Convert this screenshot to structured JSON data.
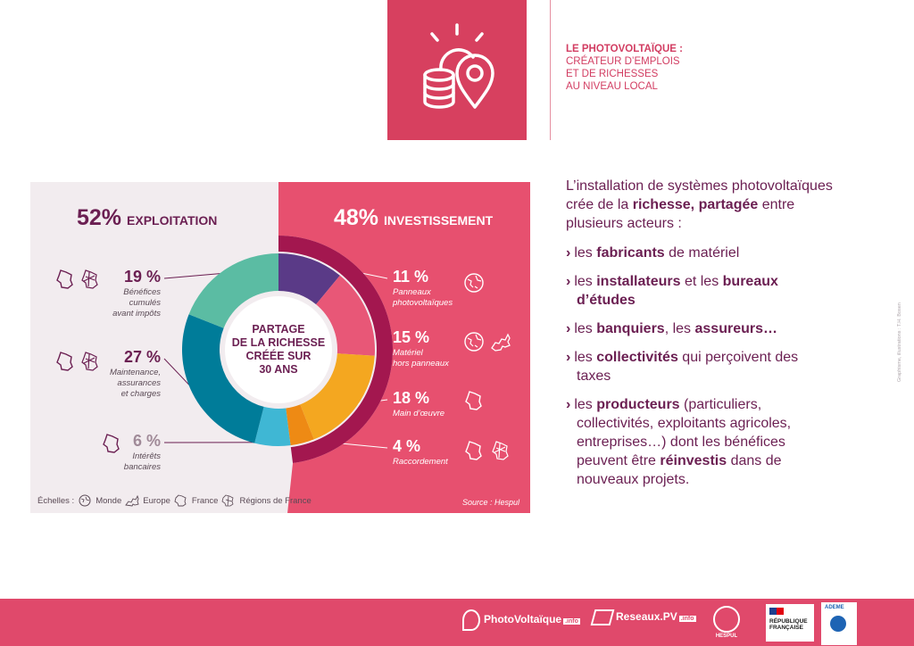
{
  "topic": {
    "line1": "LE PHOTOVOLTAÏQUE :",
    "line2": "CRÉATEUR D’EMPLOIS",
    "line3": "ET DE RICHESSES",
    "line4": "AU NIVEAU LOCAL"
  },
  "chart_data": {
    "type": "pie",
    "title": "PARTAGE DE LA RICHESSE CRÉÉE SUR 30 ANS",
    "groups": [
      {
        "name": "EXPLOITATION",
        "percent": 52
      },
      {
        "name": "INVESTISSEMENT",
        "percent": 48
      }
    ],
    "slices": [
      {
        "label": "Panneaux photovoltaïques",
        "value": 11,
        "color": "#5a3a87",
        "group": "INVESTISSEMENT",
        "scales": [
          "globe-icon"
        ]
      },
      {
        "label": "Matériel hors panneaux",
        "value": 15,
        "color": "#e85777",
        "group": "INVESTISSEMENT",
        "scales": [
          "globe-icon",
          "europe-map-icon"
        ]
      },
      {
        "label": "Main d’œuvre",
        "value": 18,
        "color": "#f4a720",
        "group": "INVESTISSEMENT",
        "scales": [
          "france-map-icon"
        ]
      },
      {
        "label": "Raccordement",
        "value": 4,
        "color": "#ee8a14",
        "group": "INVESTISSEMENT",
        "scales": [
          "france-map-icon",
          "regions-map-icon"
        ]
      },
      {
        "label": "Intérêts bancaires",
        "value": 6,
        "color": "#3fb7d4",
        "group": "EXPLOITATION",
        "scales": [
          "france-map-icon"
        ]
      },
      {
        "label": "Maintenance, assurances et charges",
        "value": 27,
        "color": "#007c99",
        "group": "EXPLOITATION",
        "scales": [
          "france-map-icon",
          "regions-map-icon"
        ]
      },
      {
        "label": "Bénéfices cumulés avant impôts",
        "value": 19,
        "color": "#5bbca3",
        "group": "EXPLOITATION",
        "scales": [
          "france-map-icon",
          "regions-map-icon"
        ]
      }
    ],
    "outer_ring_color": "#a3174f",
    "source": "Source : Hespul"
  },
  "panel": {
    "left_pct": "52%",
    "left_word": "EXPLOITATION",
    "right_pct": "48%",
    "right_word": "INVESTISSEMENT",
    "center": {
      "l1": "PARTAGE",
      "l2": "DE LA RICHESSE",
      "l3": "CRÉÉE SUR",
      "l4": "30 ANS"
    },
    "labels": {
      "benefices": {
        "pct": "19 %",
        "l1": "Bénéfices",
        "l2": "cumulés",
        "l3": "avant impôts"
      },
      "maintenance": {
        "pct": "27 %",
        "l1": "Maintenance,",
        "l2": "assurances",
        "l3": "et charges"
      },
      "interets": {
        "pct": "6 %",
        "l1": "Intérêts",
        "l2": "bancaires"
      },
      "panneaux": {
        "pct": "11 %",
        "l1": "Panneaux",
        "l2": "photovoltaïques"
      },
      "materiel": {
        "pct": "15 %",
        "l1": "Matériel",
        "l2": "hors panneaux"
      },
      "main": {
        "pct": "18 %",
        "l1": "Main d’œuvre"
      },
      "raccord": {
        "pct": "4 %",
        "l1": "Raccordement"
      }
    },
    "echelles": {
      "label": "Échelles :",
      "monde": "Monde",
      "europe": "Europe",
      "france": "France",
      "regions": "Régions de France"
    },
    "source": "Source : Hespul"
  },
  "text": {
    "intro_a": "L’installation de systèmes photovoltaïques crée de la ",
    "intro_b": "richesse,",
    "intro_c": "partagée",
    "intro_d": " entre plusieurs acteurs :",
    "chev": "›",
    "b1_a": "les ",
    "b1_b": "fabricants",
    "b1_c": " de matériel",
    "b2_a": "les ",
    "b2_b": "installateurs",
    "b2_c": " et les ",
    "b2_d": "bureaux d’études",
    "b3_a": "les ",
    "b3_b": "banquiers",
    "b3_c": ", les ",
    "b3_d": "assureurs…",
    "b4_a": "les ",
    "b4_b": "collectivités",
    "b4_c": " qui perçoivent des taxes",
    "b5_a": "les ",
    "b5_b": "producteurs",
    "b5_c": " (particuliers, collectivités, exploitants agricoles, entreprises…) dont les bénéfices peuvent être ",
    "b5_d": "réinvestis",
    "b5_e": " dans de nouveaux projets."
  },
  "credit": "Graphisme, illustrations : T.H. Bosen",
  "footer": {
    "logo1": "PhotoVoltaïque",
    "logo1_tld": ".info",
    "logo2": "Reseaux.PV",
    "logo2_tld": ".info",
    "logo3": "HESPUL",
    "rf1": "RÉPUBLIQUE",
    "rf2": "FRANÇAISE",
    "ademe": "ADEME"
  },
  "colors": {
    "pink": "#e0496b",
    "panel_right": "#e7506f",
    "panel_left": "#f2ecef",
    "purple": "#6b1f52"
  }
}
